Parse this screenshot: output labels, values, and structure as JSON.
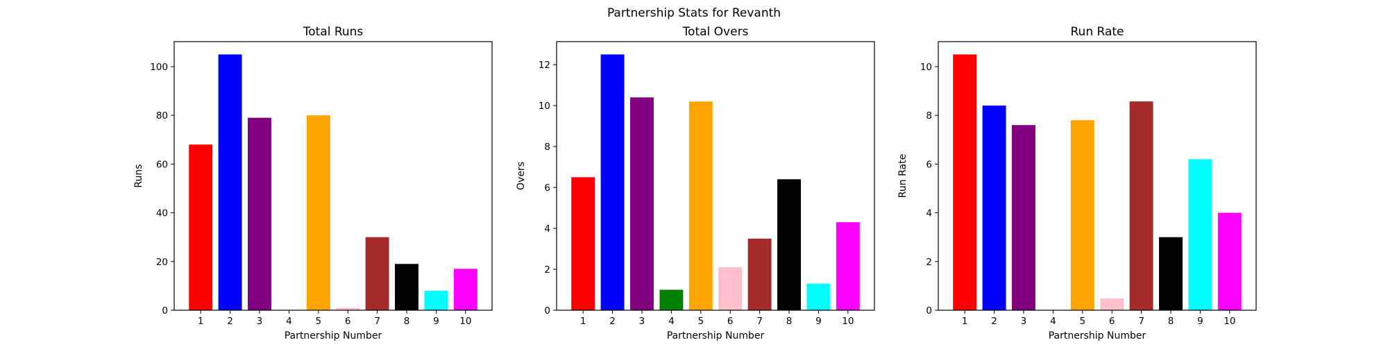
{
  "figure": {
    "suptitle": "Partnership Stats for Revanth"
  },
  "chart_data": [
    {
      "type": "bar",
      "title": "Total Runs",
      "xlabel": "Partnership Number",
      "ylabel": "Runs",
      "categories": [
        "1",
        "2",
        "3",
        "4",
        "5",
        "6",
        "7",
        "8",
        "9",
        "10"
      ],
      "values": [
        68,
        105,
        79,
        0,
        80,
        1,
        30,
        19,
        8,
        17
      ],
      "colors": [
        "#ff0000",
        "#0000ff",
        "#800080",
        "#008000",
        "#ffa500",
        "#ffc0cb",
        "#a52a2a",
        "#000000",
        "#00ffff",
        "#ff00ff"
      ],
      "ylim": [
        0,
        110.25
      ],
      "yticks": [
        0,
        20,
        40,
        60,
        80,
        100
      ],
      "grid": false
    },
    {
      "type": "bar",
      "title": "Total Overs",
      "xlabel": "Partnership Number",
      "ylabel": "Overs",
      "categories": [
        "1",
        "2",
        "3",
        "4",
        "5",
        "6",
        "7",
        "8",
        "9",
        "10"
      ],
      "values": [
        6.5,
        12.5,
        10.4,
        1.0,
        10.2,
        2.1,
        3.5,
        6.4,
        1.3,
        4.3
      ],
      "colors": [
        "#ff0000",
        "#0000ff",
        "#800080",
        "#008000",
        "#ffa500",
        "#ffc0cb",
        "#a52a2a",
        "#000000",
        "#00ffff",
        "#ff00ff"
      ],
      "ylim": [
        0,
        13.125
      ],
      "yticks": [
        0,
        2,
        4,
        6,
        8,
        10,
        12
      ],
      "grid": false
    },
    {
      "type": "bar",
      "title": "Run Rate",
      "xlabel": "Partnership Number",
      "ylabel": "Run Rate",
      "categories": [
        "1",
        "2",
        "3",
        "4",
        "5",
        "6",
        "7",
        "8",
        "9",
        "10"
      ],
      "values": [
        10.5,
        8.4,
        7.6,
        0,
        7.8,
        0.48,
        8.57,
        3.0,
        6.2,
        4.0
      ],
      "colors": [
        "#ff0000",
        "#0000ff",
        "#800080",
        "#008000",
        "#ffa500",
        "#ffc0cb",
        "#a52a2a",
        "#000000",
        "#00ffff",
        "#ff00ff"
      ],
      "ylim": [
        0,
        11.025
      ],
      "yticks": [
        0,
        2,
        4,
        6,
        8,
        10
      ],
      "grid": false
    }
  ]
}
